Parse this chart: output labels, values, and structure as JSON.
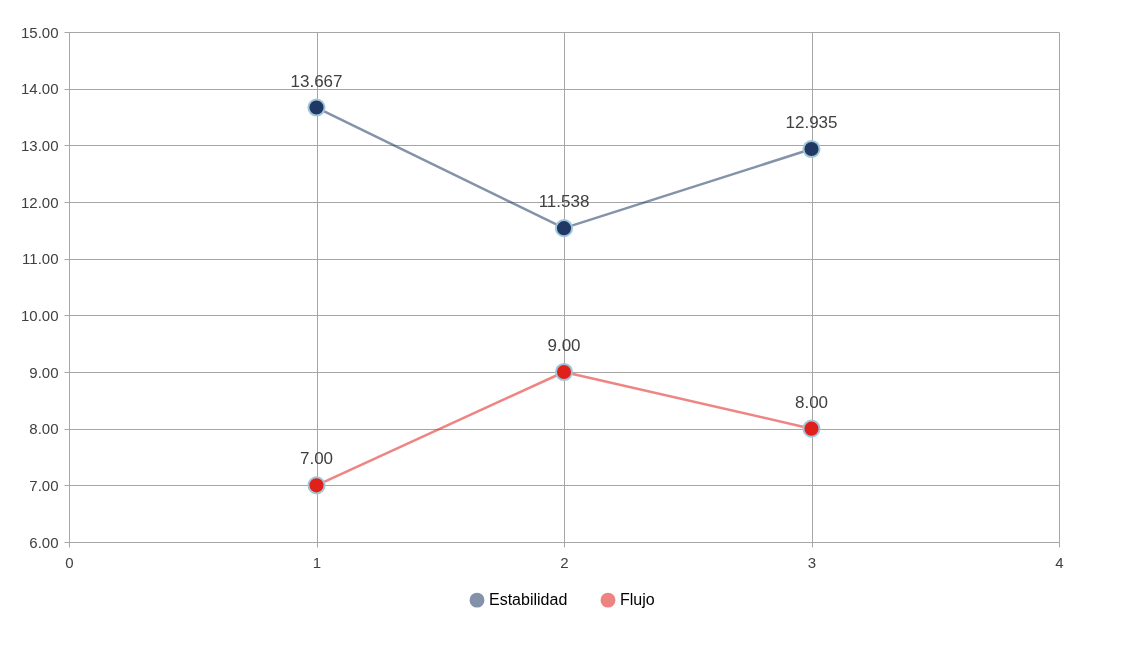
{
  "chart_data": {
    "type": "line",
    "x": [
      1,
      2,
      3
    ],
    "series": [
      {
        "name": "Estabilidad",
        "color": "#1f3864",
        "values": [
          13.667,
          11.538,
          12.935
        ],
        "value_labels": [
          "13.667",
          "11.538",
          "12.935"
        ]
      },
      {
        "name": "Flujo",
        "color": "#e0201b",
        "values": [
          7,
          9,
          8
        ],
        "value_labels": [
          "7.00",
          "9.00",
          "8.00"
        ]
      }
    ],
    "xlim": [
      0,
      4
    ],
    "xticks": [
      0,
      1,
      2,
      3,
      4
    ],
    "ylim": [
      6,
      15
    ],
    "yticks": [
      {
        "value": 6,
        "label": "6.00"
      },
      {
        "value": 7,
        "label": "7.00"
      },
      {
        "value": 8,
        "label": "8.00"
      },
      {
        "value": 9,
        "label": "9.00"
      },
      {
        "value": 10,
        "label": "10.00"
      },
      {
        "value": 11,
        "label": "11.00"
      },
      {
        "value": 12,
        "label": "12.00"
      },
      {
        "value": 13,
        "label": "13.00"
      },
      {
        "value": 14,
        "label": "14.00"
      },
      {
        "value": 15,
        "label": "15.00"
      }
    ],
    "grid": true,
    "legend": "bottom",
    "marker": "circle",
    "line_style": "solid"
  }
}
